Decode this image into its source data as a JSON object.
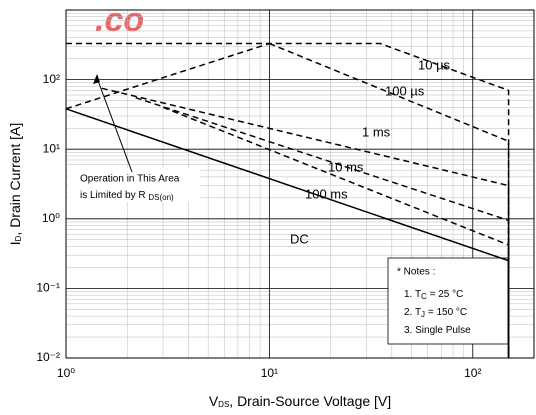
{
  "chart_data": {
    "type": "line",
    "watermark": ".co",
    "xlabel": {
      "text": "V",
      "sub": "DS",
      "after": ", Drain-Source Voltage [V]"
    },
    "ylabel": {
      "text": "I",
      "sub": "D",
      "after": ", Drain Current [A]"
    },
    "xscale": "log",
    "yscale": "log",
    "xlim": [
      1,
      200
    ],
    "ylim": [
      0.01,
      1000
    ],
    "xticks": [
      {
        "value": 1,
        "label": "10⁰"
      },
      {
        "value": 10,
        "label": "10¹"
      },
      {
        "value": 100,
        "label": "10²"
      }
    ],
    "yticks": [
      {
        "value": 0.01,
        "label": "10⁻²"
      },
      {
        "value": 0.1,
        "label": "10⁻¹"
      },
      {
        "value": 1,
        "label": "10⁰"
      },
      {
        "value": 10,
        "label": "10¹"
      },
      {
        "value": 100,
        "label": "10²"
      }
    ],
    "grid": true,
    "minor_grid": true,
    "series": [
      {
        "name": "10 µs",
        "color": "#000000",
        "style": "dashed",
        "x": [
          1,
          10,
          35,
          150,
          150
        ],
        "values": [
          38,
          330,
          330,
          70,
          0.01
        ]
      },
      {
        "color": "#000000",
        "style": "dashed",
        "x": [
          1,
          10
        ],
        "values": [
          330,
          330
        ]
      },
      {
        "name": "100 µs",
        "color": "#000000",
        "style": "dashed",
        "x": [
          10,
          150,
          150
        ],
        "values": [
          330,
          13,
          0.01
        ]
      },
      {
        "name": "1 ms",
        "color": "#000000",
        "style": "dashed",
        "x": [
          1.5,
          150,
          150
        ],
        "values": [
          75,
          3,
          0.01
        ]
      },
      {
        "name": "10 ms",
        "color": "#000000",
        "style": "dashed",
        "x": [
          2.2,
          150,
          150
        ],
        "values": [
          55,
          0.95,
          0.01
        ]
      },
      {
        "name": "100 ms",
        "color": "#000000",
        "style": "dashed",
        "x": [
          3,
          150,
          150
        ],
        "values": [
          40,
          0.42,
          0.01
        ]
      },
      {
        "name": "DC",
        "color": "#000000",
        "style": "solid",
        "x": [
          1,
          150,
          150
        ],
        "values": [
          38,
          0.25,
          0.01
        ]
      }
    ],
    "annotation": {
      "line1": "Operation in This Area",
      "line2": {
        "text": "is Limited by R ",
        "sub": "DS(on)"
      }
    },
    "notes": {
      "title": "* Notes :",
      "items": [
        {
          "text": "1. T",
          "sub": "C",
          "after": " = 25 °C"
        },
        {
          "text": "2. T",
          "sub": "J",
          "after": " = 150 °C"
        },
        {
          "text": "3. Single Pulse"
        }
      ]
    }
  }
}
